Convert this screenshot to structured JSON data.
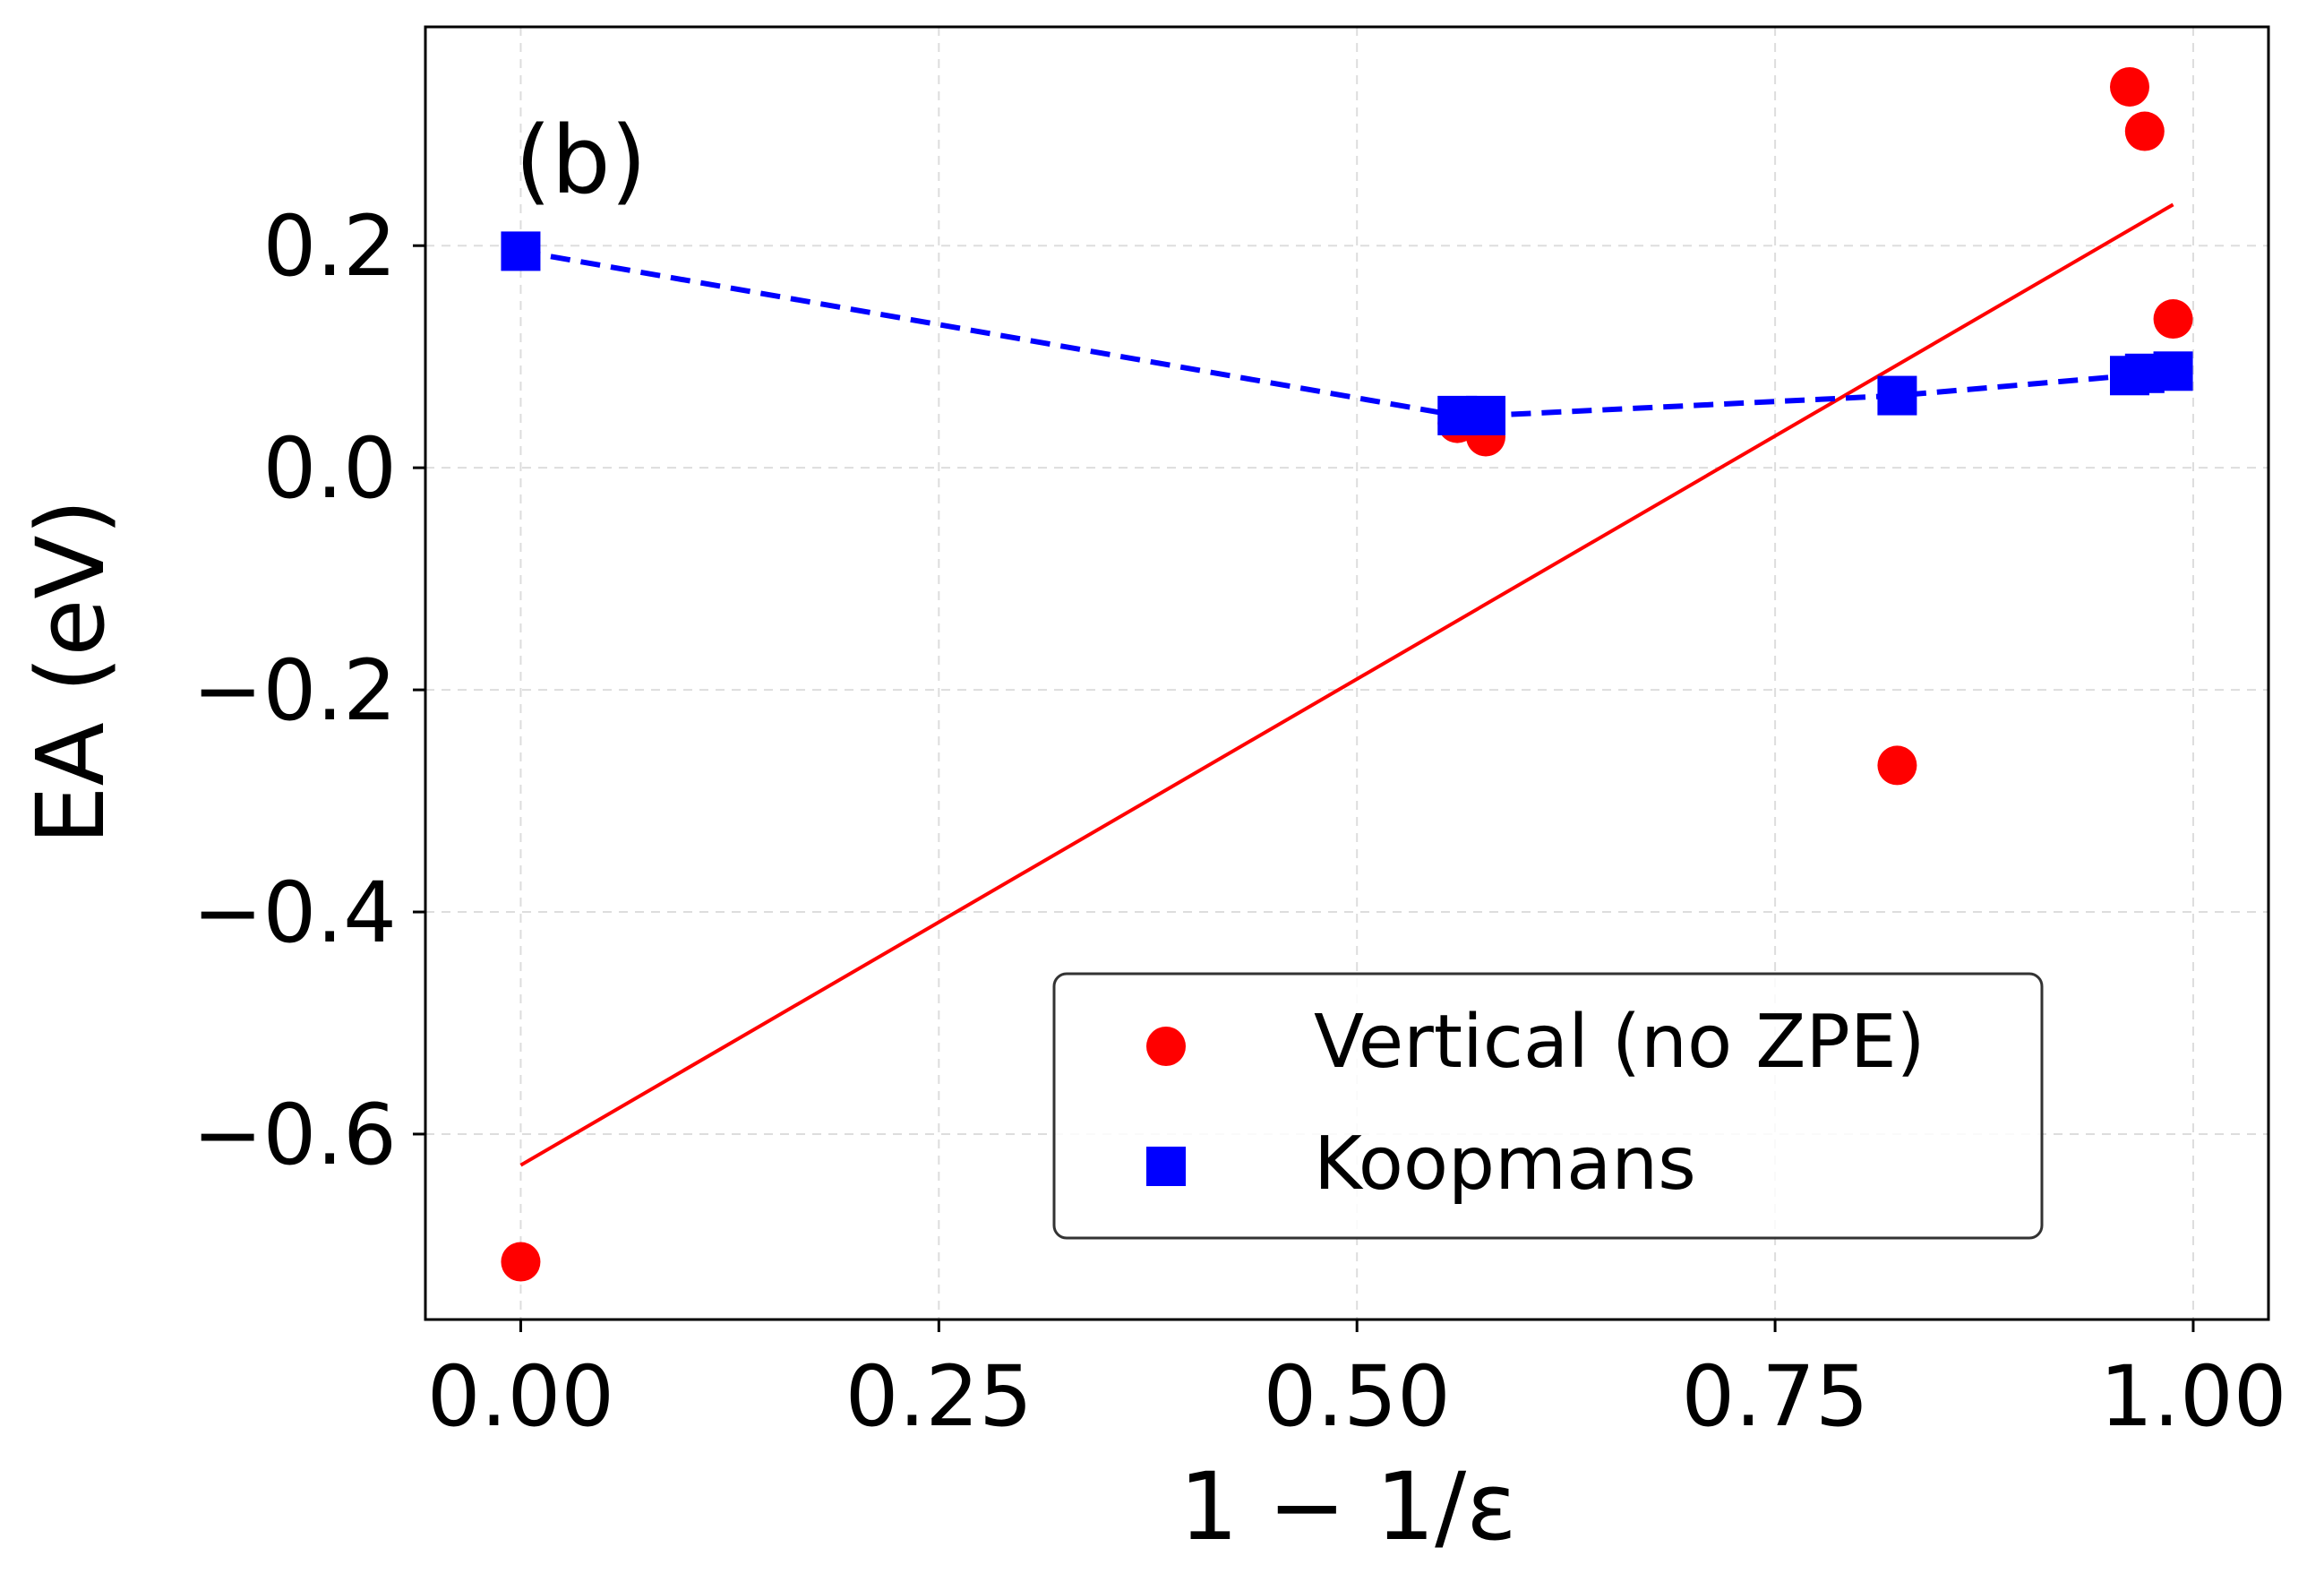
{
  "chart_data": {
    "type": "scatter",
    "panel_label": "(b)",
    "xlabel": "1 − 1/ε",
    "ylabel": "EA (eV)",
    "xlim": [
      -0.057,
      1.045
    ],
    "ylim": [
      -0.767,
      0.397
    ],
    "x_ticks": [
      0.0,
      0.25,
      0.5,
      0.75,
      1.0
    ],
    "x_tick_labels": [
      "0.00",
      "0.25",
      "0.50",
      "0.75",
      "1.00"
    ],
    "y_ticks": [
      -0.6,
      -0.4,
      -0.2,
      0.0,
      0.2
    ],
    "y_tick_labels": [
      "−0.6",
      "−0.4",
      "−0.2",
      "0.0",
      "0.2"
    ],
    "grid": true,
    "legend_position": "lower-right",
    "series": [
      {
        "name": "Vertical (no ZPE)",
        "kind": "scatter",
        "marker": "circle",
        "color": "#ff0000",
        "x": [
          0.0,
          0.56,
          0.577,
          0.823,
          0.962,
          0.971,
          0.988
        ],
        "y": [
          -0.715,
          0.04,
          0.028,
          -0.268,
          0.343,
          0.303,
          0.134
        ]
      },
      {
        "name": "Koopmans",
        "kind": "line+scatter",
        "marker": "square",
        "line_style": "dashed",
        "color": "#0000ff",
        "x": [
          0.0,
          0.56,
          0.577,
          0.823,
          0.962,
          0.971,
          0.988
        ],
        "y": [
          0.195,
          0.047,
          0.047,
          0.065,
          0.083,
          0.085,
          0.087
        ]
      },
      {
        "name": "Linear fit",
        "kind": "line",
        "color": "#ff0000",
        "in_legend": false,
        "x": [
          0.0,
          0.988
        ],
        "y": [
          -0.628,
          0.237
        ]
      }
    ]
  }
}
